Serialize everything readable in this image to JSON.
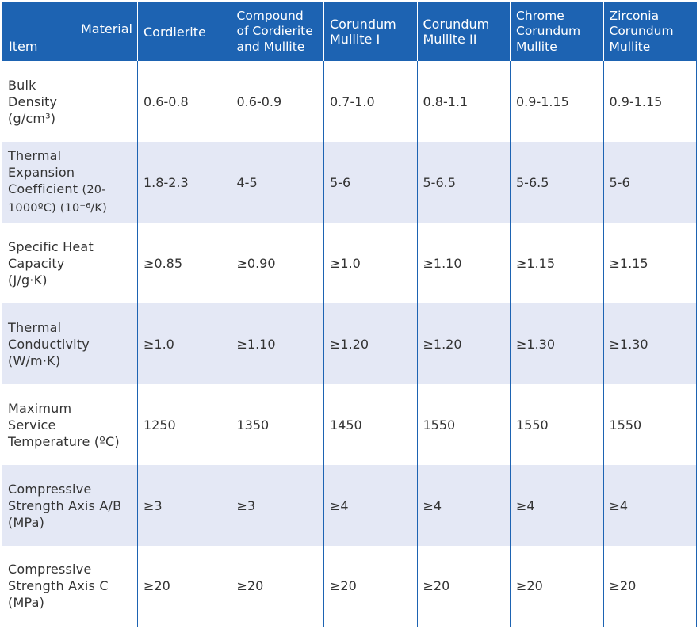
{
  "header": {
    "item_label": "Item",
    "material_label": "Material",
    "columns": [
      [
        "Cordierite"
      ],
      [
        "Compound",
        "of Cordierite",
        "and Mullite"
      ],
      [
        "Corundum",
        "Mullite I"
      ],
      [
        "Corundum",
        "Mullite II"
      ],
      [
        "Chrome",
        "Corundum",
        "Mullite"
      ],
      [
        "Zirconia",
        "Corundum",
        "Mullite"
      ]
    ]
  },
  "rows": [
    {
      "label_lines": [
        "Bulk",
        "Density",
        "(g/cm³)"
      ],
      "values": [
        "0.6-0.8",
        "0.6-0.9",
        "0.7-1.0",
        "0.8-1.1",
        "0.9-1.15",
        "0.9-1.15"
      ]
    },
    {
      "label_lines": [
        "Thermal",
        "Expansion",
        "Coefficient",
        "(20-",
        "1000ºC) (10⁻⁶/K)"
      ],
      "values": [
        "1.8-2.3",
        "4-5",
        "5-6",
        "5-6.5",
        "5-6.5",
        "5-6"
      ]
    },
    {
      "label_lines": [
        "Specific Heat",
        "Capacity",
        "(J/g·K)"
      ],
      "values": [
        "≥0.85",
        "≥0.90",
        "≥1.0",
        "≥1.10",
        "≥1.15",
        "≥1.15"
      ]
    },
    {
      "label_lines": [
        "Thermal",
        "Conductivity",
        "(W/m·K)"
      ],
      "values": [
        "≥1.0",
        "≥1.10",
        "≥1.20",
        "≥1.20",
        "≥1.30",
        "≥1.30"
      ]
    },
    {
      "label_lines": [
        "Maximum",
        "Service",
        "Temperature (ºC)"
      ],
      "values": [
        "1250",
        "1350",
        "1450",
        "1550",
        "1550",
        "1550"
      ]
    },
    {
      "label_lines": [
        "Compressive",
        "Strength Axis A/B",
        "(MPa)"
      ],
      "values": [
        "≥3",
        "≥3",
        "≥4",
        "≥4",
        "≥4",
        "≥4"
      ]
    },
    {
      "label_lines": [
        "Compressive",
        "Strength Axis C",
        "(MPa)"
      ],
      "values": [
        "≥20",
        "≥20",
        "≥20",
        "≥20",
        "≥20",
        "≥20"
      ]
    }
  ],
  "colors": {
    "header_bg": "#1d63b2",
    "alt_row_bg": "#e4e8f5",
    "text": "#333333"
  }
}
